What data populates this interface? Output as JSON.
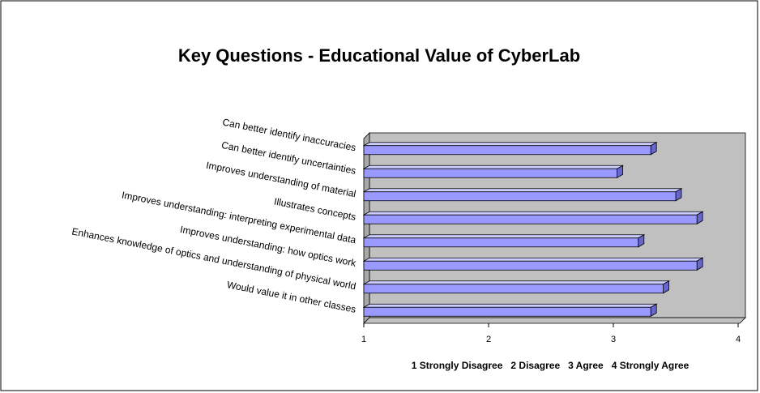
{
  "chart_data": {
    "type": "bar",
    "orientation": "horizontal",
    "three_d": true,
    "title": "Key Questions - Educational Value of CyberLab",
    "categories": [
      "Can better identify inaccuracies",
      "Can better identify uncertainties",
      "Improves understanding of material",
      "Illustrates concepts",
      "Improves understanding: interpreting experimental data",
      "Improves understanding: how optics work",
      "Enhances knowledge of optics and understanding of physical world",
      "Would value it in other classes"
    ],
    "values": [
      3.3,
      3.03,
      3.5,
      3.67,
      3.2,
      3.67,
      3.4,
      3.3
    ],
    "color": "#9999ff",
    "xlim": [
      1,
      4
    ],
    "xticks": [
      1,
      2,
      3,
      4
    ],
    "xlabel": "1 Strongly Disagree   2 Disagree   3 Agree   4 Strongly Agree"
  }
}
